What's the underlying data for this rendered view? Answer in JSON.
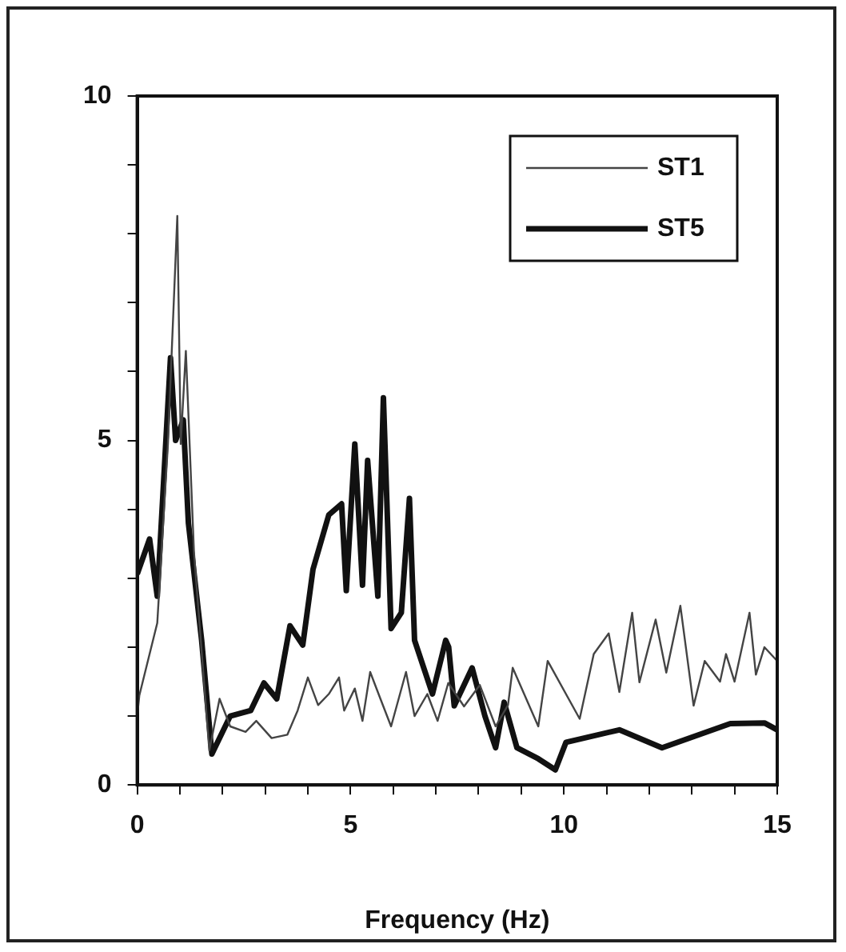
{
  "chart_data": {
    "type": "line",
    "xlabel": "Frequency (Hz)",
    "xlim": [
      0,
      15
    ],
    "ylim": [
      0,
      10
    ],
    "xticks": [
      0,
      {
        "value": 1,
        "label": null
      },
      {
        "value": 2,
        "label": null
      },
      {
        "value": 3,
        "label": null
      },
      {
        "value": 4,
        "label": null
      },
      5,
      {
        "value": 6,
        "label": null
      },
      {
        "value": 7,
        "label": null
      },
      {
        "value": 8,
        "label": null
      },
      {
        "value": 9,
        "label": null
      },
      10,
      {
        "value": 11,
        "label": null
      },
      {
        "value": 12,
        "label": null
      },
      {
        "value": 13,
        "label": null
      },
      {
        "value": 14,
        "label": null
      },
      15
    ],
    "yticks": [
      0,
      {
        "value": 1,
        "label": null
      },
      {
        "value": 2,
        "label": null
      },
      {
        "value": 3,
        "label": null
      },
      {
        "value": 4,
        "label": null
      },
      5,
      {
        "value": 6,
        "label": null
      },
      {
        "value": 7,
        "label": null
      },
      {
        "value": 8,
        "label": null
      },
      {
        "value": 9,
        "label": null
      },
      10
    ],
    "grid": false,
    "legend": "top right",
    "marker": "none",
    "line_style": "solid",
    "series": [
      {
        "name": "ST1",
        "color": "#444444",
        "x": [
          0,
          0.05,
          0.47,
          0.72,
          0.94,
          1.02,
          1.14,
          1.33,
          1.69,
          1.93,
          2.18,
          2.54,
          2.79,
          3.15,
          3.52,
          3.76,
          4.0,
          4.24,
          4.49,
          4.73,
          4.85,
          5.1,
          5.28,
          5.46,
          5.7,
          5.95,
          6.3,
          6.5,
          6.8,
          7.04,
          7.29,
          7.66,
          8.03,
          8.4,
          8.69,
          8.8,
          9.4,
          9.62,
          10.37,
          10.7,
          11.05,
          11.3,
          11.6,
          11.77,
          12.15,
          12.4,
          12.73,
          13.04,
          13.3,
          13.66,
          13.8,
          14.0,
          14.35,
          14.5,
          14.7,
          15
        ],
        "values": [
          1.0,
          1.3,
          2.35,
          4.95,
          8.26,
          4.95,
          6.3,
          3.38,
          0.5,
          1.25,
          0.85,
          0.77,
          0.93,
          0.68,
          0.73,
          1.08,
          1.56,
          1.16,
          1.32,
          1.56,
          1.08,
          1.4,
          0.93,
          1.64,
          1.25,
          0.85,
          1.64,
          1.0,
          1.32,
          0.93,
          1.48,
          1.14,
          1.45,
          0.85,
          1.16,
          1.7,
          0.85,
          1.8,
          0.96,
          1.9,
          2.2,
          1.35,
          2.5,
          1.49,
          2.4,
          1.63,
          2.6,
          1.15,
          1.8,
          1.5,
          1.9,
          1.5,
          2.5,
          1.6,
          2.0,
          1.8
        ]
      },
      {
        "name": "ST5",
        "color": "#111111",
        "x": [
          0,
          0.29,
          0.47,
          0.78,
          0.9,
          1.08,
          1.2,
          1.51,
          1.75,
          2.18,
          2.66,
          2.97,
          3.27,
          3.58,
          3.88,
          4.12,
          4.49,
          4.79,
          4.9,
          5.1,
          5.28,
          5.4,
          5.64,
          5.77,
          5.95,
          6.19,
          6.38,
          6.5,
          6.92,
          7.23,
          7.3,
          7.43,
          7.85,
          8.15,
          8.4,
          8.6,
          8.9,
          9.4,
          9.8,
          10.05,
          11.3,
          12.3,
          13.9,
          14.7,
          15
        ],
        "values": [
          3.06,
          3.57,
          2.74,
          6.2,
          5.0,
          5.3,
          3.8,
          2.1,
          0.45,
          1.0,
          1.08,
          1.48,
          1.25,
          2.31,
          2.03,
          3.13,
          3.92,
          4.08,
          2.82,
          4.95,
          2.9,
          4.71,
          2.74,
          5.62,
          2.27,
          2.5,
          4.16,
          2.1,
          1.32,
          2.1,
          2.0,
          1.15,
          1.7,
          1.0,
          0.54,
          1.2,
          0.54,
          0.38,
          0.22,
          0.62,
          0.8,
          0.54,
          0.89,
          0.9,
          0.8
        ]
      }
    ]
  }
}
